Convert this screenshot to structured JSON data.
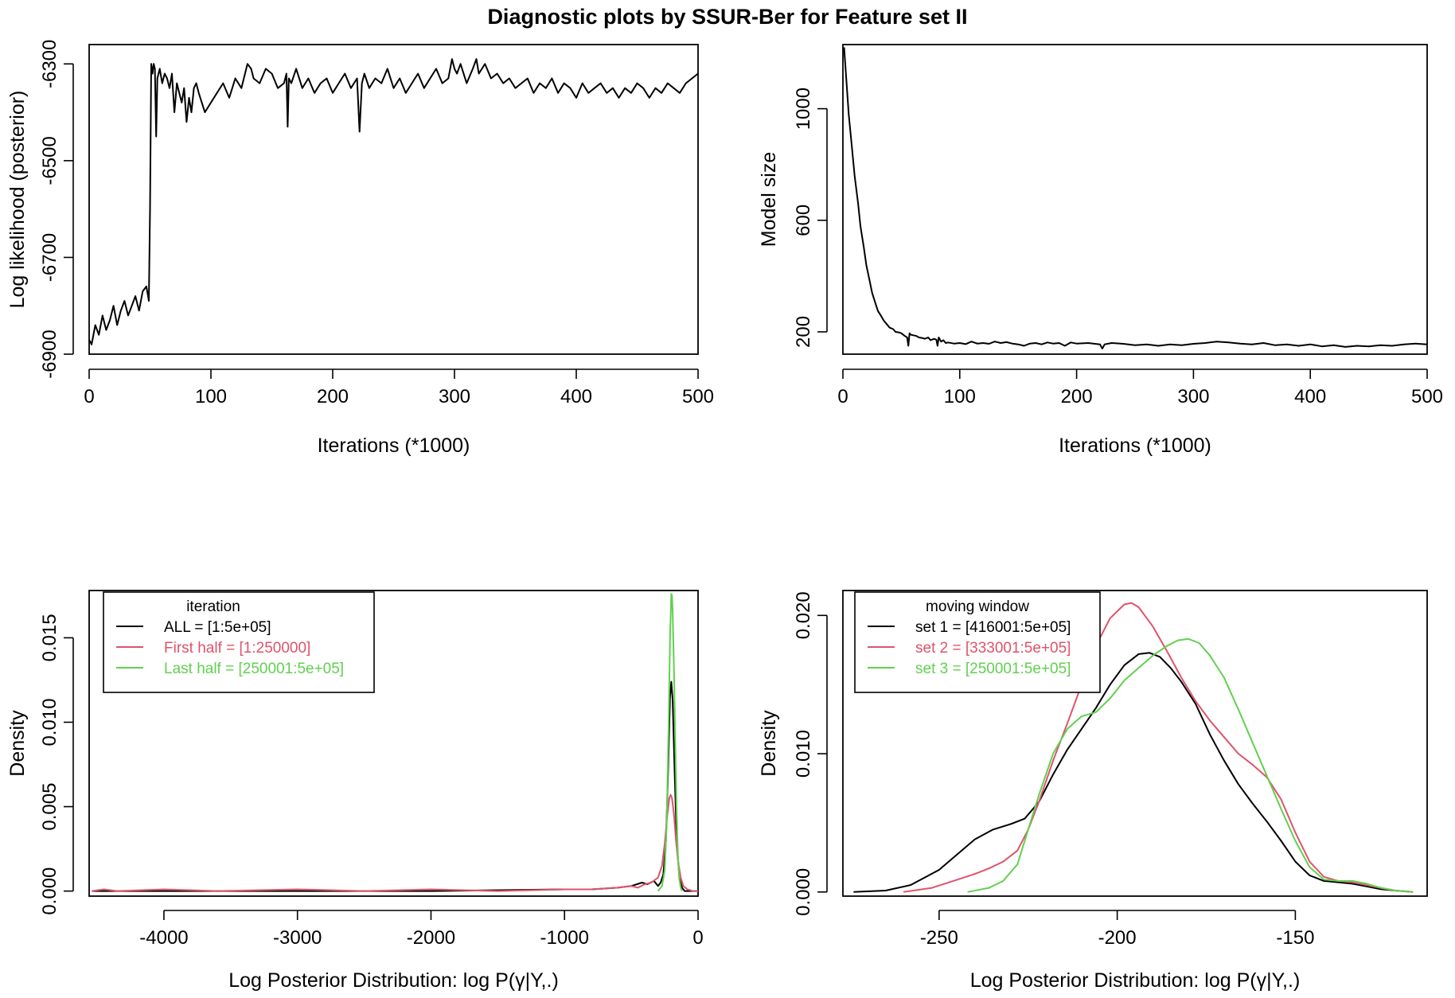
{
  "figure": {
    "title": "Diagnostic plots by SSUR-Ber for Feature set II",
    "colors": {
      "black": "#000000",
      "red": "#df536b",
      "green": "#61d04f"
    }
  },
  "chart_data": [
    {
      "type": "line",
      "title": "",
      "xlabel": "Iterations (*1000)",
      "ylabel": "Log likelihood (posterior)",
      "xlim": [
        0,
        500
      ],
      "ylim": [
        -6900,
        -6260
      ],
      "xticks": [
        0,
        100,
        200,
        300,
        400,
        500
      ],
      "xtick_labels": [
        "0",
        "100",
        "200",
        "300",
        "400",
        "500"
      ],
      "yticks": [
        -6900,
        -6700,
        -6500,
        -6300
      ],
      "ytick_labels": [
        "-6900",
        "-6700",
        "-6500",
        "-6300"
      ],
      "series": [
        {
          "name": "log likelihood",
          "color": "#000000",
          "x": [
            0,
            2,
            5,
            8,
            11,
            14,
            17,
            20,
            23,
            26,
            29,
            32,
            35,
            38,
            41,
            44,
            47,
            49,
            50,
            51,
            52,
            53,
            54,
            55,
            56,
            57,
            58,
            60,
            62,
            64,
            66,
            68,
            70,
            72,
            74,
            76,
            78,
            80,
            82,
            84,
            86,
            88,
            90,
            95,
            100,
            105,
            110,
            115,
            120,
            125,
            130,
            133,
            135,
            140,
            145,
            150,
            155,
            160,
            162,
            163,
            164,
            166,
            170,
            175,
            180,
            185,
            190,
            195,
            200,
            205,
            210,
            215,
            220,
            222,
            224,
            226,
            230,
            235,
            240,
            245,
            250,
            255,
            260,
            265,
            270,
            275,
            280,
            285,
            290,
            295,
            298,
            300,
            302,
            305,
            310,
            315,
            318,
            320,
            325,
            330,
            335,
            340,
            345,
            350,
            355,
            360,
            365,
            370,
            375,
            380,
            385,
            390,
            395,
            400,
            405,
            410,
            415,
            420,
            425,
            430,
            435,
            440,
            445,
            450,
            455,
            460,
            465,
            470,
            475,
            480,
            485,
            490,
            495,
            500
          ],
          "y": [
            -6870,
            -6880,
            -6840,
            -6860,
            -6820,
            -6850,
            -6830,
            -6800,
            -6840,
            -6810,
            -6790,
            -6820,
            -6800,
            -6780,
            -6810,
            -6770,
            -6760,
            -6790,
            -6600,
            -6300,
            -6320,
            -6300,
            -6310,
            -6450,
            -6330,
            -6320,
            -6310,
            -6340,
            -6320,
            -6330,
            -6350,
            -6320,
            -6400,
            -6340,
            -6360,
            -6380,
            -6350,
            -6420,
            -6370,
            -6400,
            -6350,
            -6340,
            -6360,
            -6400,
            -6380,
            -6360,
            -6340,
            -6370,
            -6330,
            -6350,
            -6300,
            -6310,
            -6330,
            -6340,
            -6310,
            -6320,
            -6350,
            -6340,
            -6320,
            -6430,
            -6330,
            -6340,
            -6310,
            -6350,
            -6330,
            -6360,
            -6340,
            -6330,
            -6360,
            -6340,
            -6320,
            -6350,
            -6330,
            -6440,
            -6340,
            -6320,
            -6350,
            -6330,
            -6340,
            -6310,
            -6350,
            -6330,
            -6360,
            -6340,
            -6320,
            -6350,
            -6330,
            -6310,
            -6340,
            -6330,
            -6290,
            -6310,
            -6320,
            -6300,
            -6340,
            -6310,
            -6290,
            -6320,
            -6300,
            -6330,
            -6320,
            -6340,
            -6330,
            -6350,
            -6340,
            -6330,
            -6360,
            -6340,
            -6350,
            -6330,
            -6360,
            -6340,
            -6350,
            -6370,
            -6340,
            -6360,
            -6350,
            -6340,
            -6360,
            -6350,
            -6370,
            -6350,
            -6360,
            -6340,
            -6350,
            -6370,
            -6350,
            -6360,
            -6340,
            -6350,
            -6360,
            -6340,
            -6330,
            -6320
          ]
        }
      ]
    },
    {
      "type": "line",
      "title": "",
      "xlabel": "Iterations (*1000)",
      "ylabel": "Model size",
      "xlim": [
        0,
        500
      ],
      "ylim": [
        120,
        1230
      ],
      "xticks": [
        0,
        100,
        200,
        300,
        400,
        500
      ],
      "xtick_labels": [
        "0",
        "100",
        "200",
        "300",
        "400",
        "500"
      ],
      "yticks": [
        200,
        600,
        1000
      ],
      "ytick_labels": [
        "200",
        "600",
        "1000"
      ],
      "series": [
        {
          "name": "model size",
          "color": "#000000",
          "x": [
            1,
            3,
            5,
            8,
            10,
            13,
            15,
            18,
            20,
            23,
            25,
            28,
            30,
            33,
            35,
            38,
            40,
            43,
            45,
            48,
            50,
            53,
            55,
            56,
            57,
            58,
            60,
            63,
            65,
            68,
            70,
            73,
            75,
            78,
            80,
            81,
            82,
            84,
            86,
            88,
            90,
            95,
            100,
            105,
            110,
            115,
            120,
            125,
            130,
            135,
            140,
            145,
            150,
            155,
            160,
            165,
            170,
            175,
            180,
            185,
            190,
            195,
            200,
            210,
            220,
            222,
            224,
            230,
            240,
            250,
            260,
            270,
            280,
            290,
            300,
            310,
            320,
            330,
            340,
            350,
            360,
            370,
            380,
            390,
            400,
            410,
            420,
            430,
            440,
            450,
            460,
            470,
            480,
            490,
            500
          ],
          "y": [
            1220,
            1100,
            980,
            850,
            760,
            660,
            580,
            500,
            440,
            380,
            340,
            300,
            275,
            255,
            240,
            225,
            215,
            210,
            200,
            198,
            195,
            185,
            180,
            150,
            195,
            190,
            188,
            185,
            180,
            178,
            175,
            180,
            170,
            175,
            172,
            150,
            180,
            165,
            170,
            160,
            162,
            158,
            160,
            156,
            165,
            158,
            160,
            157,
            165,
            160,
            163,
            158,
            155,
            150,
            158,
            160,
            155,
            162,
            158,
            160,
            150,
            162,
            158,
            160,
            155,
            140,
            155,
            160,
            157,
            152,
            155,
            150,
            155,
            152,
            157,
            160,
            165,
            162,
            158,
            155,
            160,
            152,
            155,
            150,
            155,
            148,
            152,
            146,
            150,
            148,
            152,
            150,
            155,
            158,
            155
          ]
        }
      ]
    },
    {
      "type": "line",
      "title": "",
      "xlabel": "Log Posterior Distribution: log P(γ|Y,.)",
      "ylabel": "Density",
      "xlim": [
        -4560,
        0
      ],
      "ylim": [
        -0.0003,
        0.0178
      ],
      "xticks": [
        -4000,
        -3000,
        -2000,
        -1000,
        0
      ],
      "xtick_labels": [
        "-4000",
        "-3000",
        "-2000",
        "-1000",
        "0"
      ],
      "yticks": [
        0.0,
        0.005,
        0.01,
        0.015
      ],
      "ytick_labels": [
        "0.000",
        "0.005",
        "0.010",
        "0.015"
      ],
      "legend": {
        "title": "iteration",
        "position": "top-left",
        "entries": [
          "ALL = [1:5e+05]",
          "First half = [1:250000]",
          "Last half = [250001:5e+05]"
        ]
      },
      "series": [
        {
          "name": "ALL = [1:5e+05]",
          "color": "#000000",
          "x": [
            -4540,
            -4000,
            -3000,
            -2000,
            -1000,
            -800,
            -600,
            -500,
            -420,
            -380,
            -330,
            -300,
            -280,
            -260,
            -240,
            -225,
            -210,
            -200,
            -190,
            -175,
            -160,
            -140,
            -120,
            -100,
            -60,
            0
          ],
          "y": [
            0.0,
            0.0,
            0.0,
            0.0,
            0.0001,
            0.0001,
            0.0002,
            0.0003,
            0.0005,
            0.0004,
            0.0006,
            0.0003,
            0.0005,
            0.001,
            0.003,
            0.007,
            0.0115,
            0.0124,
            0.0113,
            0.007,
            0.003,
            0.0008,
            0.0002,
            0.0,
            0.0,
            0.0
          ]
        },
        {
          "name": "First half = [1:250000]",
          "color": "#df536b",
          "x": [
            -4540,
            -4450,
            -4350,
            -4000,
            -3600,
            -3000,
            -2500,
            -2000,
            -1500,
            -1000,
            -800,
            -600,
            -500,
            -450,
            -400,
            -350,
            -300,
            -270,
            -250,
            -230,
            -215,
            -205,
            -195,
            -180,
            -165,
            -150,
            -130,
            -110,
            -80,
            -40,
            0
          ],
          "y": [
            0.0,
            0.0001,
            0.0,
            0.0001,
            0.0,
            0.0001,
            0.0,
            0.0001,
            0.0,
            0.0001,
            0.0001,
            0.0002,
            0.0003,
            0.0002,
            0.0004,
            0.0005,
            0.0008,
            0.0015,
            0.0028,
            0.0045,
            0.0055,
            0.0057,
            0.0055,
            0.0045,
            0.003,
            0.0018,
            0.0008,
            0.0003,
            0.0001,
            0.0,
            0.0
          ]
        },
        {
          "name": "Last half = [250001:5e+05]",
          "color": "#61d04f",
          "x": [
            -300,
            -270,
            -250,
            -235,
            -220,
            -210,
            -200,
            -195,
            -190,
            -180,
            -170,
            -160,
            -150,
            -140,
            -130,
            -120
          ],
          "y": [
            0.0,
            0.0003,
            0.0012,
            0.004,
            0.01,
            0.015,
            0.0176,
            0.0175,
            0.0165,
            0.013,
            0.0085,
            0.0045,
            0.002,
            0.0007,
            0.0002,
            0.0
          ]
        }
      ]
    },
    {
      "type": "line",
      "title": "",
      "xlabel": "Log Posterior Distribution: log P(γ|Y,.)",
      "ylabel": "Density",
      "xlim": [
        -277,
        -113
      ],
      "ylim": [
        -0.0003,
        0.0218
      ],
      "xticks": [
        -250,
        -200,
        -150
      ],
      "xtick_labels": [
        "-250",
        "-200",
        "-150"
      ],
      "yticks": [
        0.0,
        0.01,
        0.02
      ],
      "ytick_labels": [
        "0.000",
        "0.010",
        "0.020"
      ],
      "legend": {
        "title": "moving window",
        "position": "top-left",
        "entries": [
          "set 1 = [416001:5e+05]",
          "set 2 = [333001:5e+05]",
          "set 3 = [250001:5e+05]"
        ]
      },
      "series": [
        {
          "name": "set 1 = [416001:5e+05]",
          "color": "#000000",
          "x": [
            -274,
            -265,
            -258,
            -250,
            -245,
            -240,
            -235,
            -230,
            -226,
            -222,
            -218,
            -214,
            -210,
            -206,
            -202,
            -198,
            -194,
            -191,
            -188,
            -185,
            -182,
            -178,
            -174,
            -170,
            -166,
            -162,
            -158,
            -154,
            -150,
            -146,
            -142,
            -138,
            -134,
            -130,
            -126,
            -122,
            -117
          ],
          "y": [
            0.0,
            0.0001,
            0.0005,
            0.0016,
            0.0027,
            0.0038,
            0.0045,
            0.0049,
            0.0053,
            0.0065,
            0.0085,
            0.0103,
            0.0118,
            0.0133,
            0.015,
            0.0164,
            0.0172,
            0.0173,
            0.017,
            0.0162,
            0.0152,
            0.0136,
            0.0114,
            0.0095,
            0.0078,
            0.0064,
            0.0051,
            0.0037,
            0.0022,
            0.0012,
            0.0008,
            0.0007,
            0.0006,
            0.0004,
            0.0002,
            0.0001,
            0.0
          ]
        },
        {
          "name": "set 2 = [333001:5e+05]",
          "color": "#df536b",
          "x": [
            -260,
            -252,
            -246,
            -240,
            -236,
            -232,
            -228,
            -225,
            -222,
            -218,
            -214,
            -210,
            -206,
            -202,
            -198,
            -196,
            -194,
            -190,
            -186,
            -182,
            -178,
            -174,
            -170,
            -166,
            -162,
            -158,
            -154,
            -150,
            -146,
            -142,
            -138,
            -134,
            -130,
            -126,
            -122,
            -117
          ],
          "y": [
            0.0,
            0.0003,
            0.0008,
            0.0013,
            0.0017,
            0.0022,
            0.003,
            0.0045,
            0.0065,
            0.0095,
            0.0122,
            0.015,
            0.0178,
            0.0198,
            0.0208,
            0.0209,
            0.0206,
            0.0192,
            0.0174,
            0.0155,
            0.0138,
            0.0124,
            0.0112,
            0.01,
            0.0092,
            0.0083,
            0.0067,
            0.0043,
            0.0022,
            0.0011,
            0.0008,
            0.0007,
            0.0005,
            0.0003,
            0.0001,
            0.0
          ]
        },
        {
          "name": "set 3 = [250001:5e+05]",
          "color": "#61d04f",
          "x": [
            -242,
            -236,
            -232,
            -228,
            -225,
            -222,
            -218,
            -214,
            -210,
            -206,
            -202,
            -198,
            -194,
            -190,
            -186,
            -183,
            -180,
            -177,
            -174,
            -170,
            -166,
            -162,
            -158,
            -154,
            -150,
            -146,
            -142,
            -138,
            -134,
            -130,
            -126,
            -122,
            -117
          ],
          "y": [
            0.0,
            0.0003,
            0.0008,
            0.002,
            0.0045,
            0.007,
            0.01,
            0.0118,
            0.0127,
            0.013,
            0.014,
            0.0153,
            0.0162,
            0.0171,
            0.0178,
            0.0182,
            0.0183,
            0.018,
            0.0171,
            0.0155,
            0.0132,
            0.0108,
            0.0084,
            0.006,
            0.0037,
            0.0018,
            0.0009,
            0.0008,
            0.0008,
            0.0006,
            0.0003,
            0.0001,
            0.0
          ]
        }
      ]
    }
  ]
}
